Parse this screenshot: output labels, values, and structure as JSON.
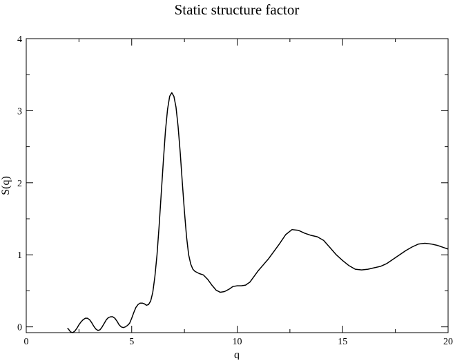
{
  "chart_data": {
    "type": "line",
    "title": "Static structure factor",
    "xlabel": "q",
    "ylabel": "S(q)",
    "xlim": [
      0,
      20
    ],
    "ylim": [
      -0.08,
      4
    ],
    "xticks": [
      0,
      5,
      10,
      15,
      20
    ],
    "xtick_labels": [
      "0",
      "5",
      "10",
      "15",
      "20"
    ],
    "yticks": [
      0,
      1,
      2,
      3,
      4
    ],
    "ytick_labels": [
      "0",
      "1",
      "2",
      "3",
      "4"
    ],
    "grid": false,
    "legend": "none",
    "line_color": "#000000",
    "series": [
      {
        "x": [
          1.95,
          2.0,
          2.1,
          2.2,
          2.3,
          2.4,
          2.5,
          2.6,
          2.7,
          2.8,
          2.9,
          3.0,
          3.1,
          3.2,
          3.3,
          3.4,
          3.5,
          3.6,
          3.7,
          3.8,
          3.9,
          4.0,
          4.1,
          4.2,
          4.3,
          4.4,
          4.5,
          4.6,
          4.7,
          4.8,
          4.9,
          5.0,
          5.1,
          5.2,
          5.3,
          5.4,
          5.5,
          5.6,
          5.7,
          5.8,
          5.9,
          6.0,
          6.1,
          6.2,
          6.3,
          6.4,
          6.5,
          6.6,
          6.7,
          6.8,
          6.9,
          7.0,
          7.1,
          7.2,
          7.3,
          7.4,
          7.5,
          7.6,
          7.7,
          7.8,
          7.9,
          8.0,
          8.2,
          8.4,
          8.6,
          8.8,
          9.0,
          9.2,
          9.4,
          9.6,
          9.8,
          10.0,
          10.2,
          10.4,
          10.6,
          10.8,
          11.0,
          11.5,
          12.0,
          12.3,
          12.6,
          12.9,
          13.2,
          13.5,
          13.8,
          14.1,
          14.4,
          14.7,
          15.0,
          15.3,
          15.6,
          15.9,
          16.2,
          16.5,
          16.8,
          17.1,
          17.4,
          17.7,
          18.0,
          18.3,
          18.6,
          18.9,
          19.2,
          19.5,
          19.8,
          20.0
        ],
        "y": [
          -0.02,
          -0.03,
          -0.07,
          -0.08,
          -0.06,
          -0.02,
          0.03,
          0.07,
          0.1,
          0.12,
          0.12,
          0.1,
          0.06,
          0.01,
          -0.03,
          -0.05,
          -0.04,
          0.0,
          0.05,
          0.1,
          0.13,
          0.14,
          0.14,
          0.12,
          0.08,
          0.03,
          0.0,
          -0.01,
          0.0,
          0.02,
          0.05,
          0.12,
          0.2,
          0.27,
          0.31,
          0.33,
          0.33,
          0.32,
          0.3,
          0.31,
          0.36,
          0.48,
          0.7,
          1.0,
          1.4,
          1.85,
          2.3,
          2.72,
          3.02,
          3.2,
          3.25,
          3.2,
          3.05,
          2.78,
          2.42,
          2.0,
          1.6,
          1.25,
          1.0,
          0.87,
          0.8,
          0.77,
          0.74,
          0.72,
          0.66,
          0.58,
          0.51,
          0.48,
          0.49,
          0.52,
          0.56,
          0.57,
          0.57,
          0.58,
          0.62,
          0.7,
          0.78,
          0.95,
          1.15,
          1.28,
          1.35,
          1.34,
          1.3,
          1.27,
          1.25,
          1.2,
          1.1,
          1.0,
          0.92,
          0.85,
          0.8,
          0.79,
          0.8,
          0.82,
          0.84,
          0.88,
          0.94,
          1.0,
          1.06,
          1.11,
          1.15,
          1.16,
          1.15,
          1.13,
          1.1,
          1.08
        ]
      }
    ]
  }
}
